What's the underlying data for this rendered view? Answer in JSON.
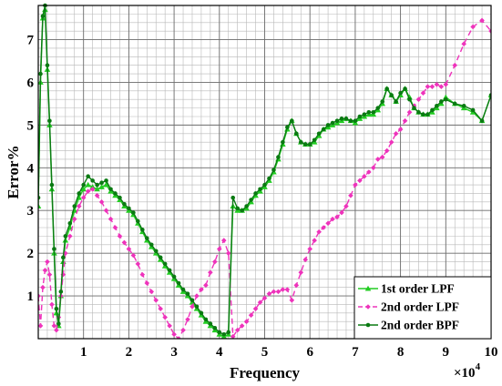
{
  "chart_data": {
    "type": "line",
    "title": "",
    "xlabel": "Frequency",
    "ylabel": "Error%",
    "x_multiplier_label": "×10",
    "x_multiplier_exp": "4",
    "xlim": [
      0,
      10
    ],
    "ylim": [
      0,
      7.8
    ],
    "xticks": [
      1,
      2,
      3,
      4,
      5,
      6,
      7,
      8,
      9,
      10
    ],
    "yticks": [
      1,
      2,
      3,
      4,
      5,
      6,
      7
    ],
    "grid": true,
    "legend_position": "bottom-right",
    "series": [
      {
        "name": "1st order LPF",
        "color": "#22cc22",
        "dash": "solid",
        "marker": "triangle",
        "x": [
          0.0,
          0.05,
          0.1,
          0.15,
          0.2,
          0.25,
          0.3,
          0.35,
          0.4,
          0.45,
          0.5,
          0.55,
          0.6,
          0.7,
          0.8,
          0.9,
          1.0,
          1.1,
          1.2,
          1.3,
          1.4,
          1.5,
          1.6,
          1.7,
          1.8,
          1.9,
          2.0,
          2.1,
          2.2,
          2.3,
          2.4,
          2.5,
          2.6,
          2.7,
          2.8,
          2.9,
          3.0,
          3.1,
          3.2,
          3.3,
          3.4,
          3.5,
          3.6,
          3.7,
          3.8,
          3.9,
          4.0,
          4.1,
          4.2,
          4.3,
          4.4,
          4.5,
          4.6,
          4.7,
          4.8,
          4.9,
          5.0,
          5.1,
          5.2,
          5.3,
          5.4,
          5.5,
          5.6,
          5.7,
          5.8,
          5.9,
          6.0,
          6.1,
          6.2,
          6.3,
          6.4,
          6.5,
          6.6,
          6.7,
          6.8,
          6.9,
          7.0,
          7.1,
          7.2,
          7.3,
          7.4,
          7.5,
          7.6,
          7.7,
          7.8,
          7.9,
          8.0,
          8.1,
          8.2,
          8.3,
          8.4,
          8.5,
          8.6,
          8.7,
          8.8,
          8.9,
          9.0,
          9.2,
          9.4,
          9.6,
          9.8,
          10.0
        ],
        "values": [
          3.1,
          6.0,
          7.5,
          7.7,
          6.3,
          5.0,
          3.5,
          2.0,
          0.6,
          0.3,
          1.0,
          1.8,
          2.3,
          2.6,
          3.0,
          3.3,
          3.5,
          3.6,
          3.55,
          3.5,
          3.55,
          3.6,
          3.45,
          3.35,
          3.25,
          3.1,
          3.0,
          2.9,
          2.7,
          2.5,
          2.3,
          2.15,
          2.0,
          1.85,
          1.7,
          1.55,
          1.4,
          1.25,
          1.1,
          1.0,
          0.85,
          0.7,
          0.55,
          0.4,
          0.3,
          0.2,
          0.1,
          0.05,
          0.1,
          3.1,
          3.0,
          3.0,
          3.05,
          3.2,
          3.35,
          3.45,
          3.55,
          3.7,
          3.9,
          4.2,
          4.55,
          4.9,
          5.1,
          4.8,
          4.6,
          4.55,
          4.55,
          4.6,
          4.75,
          4.9,
          4.95,
          5.0,
          5.05,
          5.1,
          5.15,
          5.1,
          5.05,
          5.15,
          5.2,
          5.25,
          5.25,
          5.35,
          5.5,
          5.85,
          5.7,
          5.55,
          5.7,
          5.85,
          5.65,
          5.4,
          5.3,
          5.25,
          5.25,
          5.3,
          5.4,
          5.5,
          5.65,
          5.5,
          5.4,
          5.3,
          5.1,
          5.7
        ]
      },
      {
        "name": "2nd order LPF",
        "color": "#ee33bb",
        "dash": "dashed",
        "marker": "diamond",
        "x": [
          0.0,
          0.05,
          0.1,
          0.15,
          0.2,
          0.25,
          0.3,
          0.35,
          0.4,
          0.45,
          0.5,
          0.55,
          0.6,
          0.7,
          0.8,
          0.9,
          1.0,
          1.1,
          1.2,
          1.3,
          1.4,
          1.5,
          1.6,
          1.7,
          1.8,
          1.9,
          2.0,
          2.1,
          2.2,
          2.3,
          2.4,
          2.5,
          2.6,
          2.7,
          2.8,
          2.9,
          3.0,
          3.1,
          3.2,
          3.3,
          3.4,
          3.5,
          3.6,
          3.7,
          3.8,
          3.9,
          4.0,
          4.1,
          4.2,
          4.3,
          4.4,
          4.5,
          4.6,
          4.7,
          4.8,
          4.9,
          5.0,
          5.1,
          5.2,
          5.3,
          5.4,
          5.5,
          5.6,
          5.7,
          5.8,
          5.9,
          6.0,
          6.1,
          6.2,
          6.3,
          6.4,
          6.5,
          6.6,
          6.7,
          6.8,
          6.9,
          7.0,
          7.1,
          7.2,
          7.3,
          7.4,
          7.5,
          7.6,
          7.7,
          7.8,
          7.9,
          8.0,
          8.1,
          8.2,
          8.3,
          8.4,
          8.5,
          8.6,
          8.7,
          8.8,
          8.9,
          9.0,
          9.2,
          9.4,
          9.6,
          9.8,
          10.0
        ],
        "values": [
          1.0,
          0.3,
          1.2,
          1.6,
          1.8,
          1.5,
          0.8,
          0.3,
          0.2,
          0.5,
          1.0,
          1.5,
          2.0,
          2.4,
          2.8,
          3.1,
          3.3,
          3.45,
          3.5,
          3.35,
          3.2,
          3.0,
          2.8,
          2.6,
          2.4,
          2.25,
          2.1,
          1.95,
          1.75,
          1.5,
          1.3,
          1.1,
          0.9,
          0.7,
          0.5,
          0.3,
          0.1,
          0.0,
          0.2,
          0.45,
          0.75,
          1.0,
          1.15,
          1.25,
          1.55,
          1.8,
          2.1,
          2.3,
          2.0,
          0.05,
          0.2,
          0.3,
          0.4,
          0.55,
          0.7,
          0.85,
          0.95,
          1.05,
          1.1,
          1.1,
          1.15,
          1.15,
          0.9,
          1.25,
          1.55,
          1.85,
          2.1,
          2.3,
          2.5,
          2.6,
          2.7,
          2.8,
          2.85,
          2.95,
          3.1,
          3.35,
          3.6,
          3.7,
          3.8,
          3.9,
          4.0,
          4.2,
          4.25,
          4.4,
          4.6,
          4.8,
          4.9,
          5.1,
          5.3,
          5.45,
          5.6,
          5.75,
          5.9,
          5.9,
          5.95,
          5.9,
          5.95,
          6.4,
          6.9,
          7.3,
          7.45,
          7.2
        ]
      },
      {
        "name": "2nd order BPF",
        "color": "#0a7a12",
        "dash": "solid",
        "marker": "star",
        "x": [
          0.0,
          0.05,
          0.1,
          0.15,
          0.2,
          0.25,
          0.3,
          0.35,
          0.4,
          0.45,
          0.5,
          0.55,
          0.6,
          0.7,
          0.8,
          0.9,
          1.0,
          1.1,
          1.2,
          1.3,
          1.4,
          1.5,
          1.6,
          1.7,
          1.8,
          1.9,
          2.0,
          2.1,
          2.2,
          2.3,
          2.4,
          2.5,
          2.6,
          2.7,
          2.8,
          2.9,
          3.0,
          3.1,
          3.2,
          3.3,
          3.4,
          3.5,
          3.6,
          3.7,
          3.8,
          3.9,
          4.0,
          4.1,
          4.2,
          4.3,
          4.4,
          4.5,
          4.6,
          4.7,
          4.8,
          4.9,
          5.0,
          5.1,
          5.2,
          5.3,
          5.4,
          5.5,
          5.6,
          5.7,
          5.8,
          5.9,
          6.0,
          6.1,
          6.2,
          6.3,
          6.4,
          6.5,
          6.6,
          6.7,
          6.8,
          6.9,
          7.0,
          7.1,
          7.2,
          7.3,
          7.4,
          7.5,
          7.6,
          7.7,
          7.8,
          7.9,
          8.0,
          8.1,
          8.2,
          8.3,
          8.4,
          8.5,
          8.6,
          8.7,
          8.8,
          8.9,
          9.0,
          9.2,
          9.4,
          9.6,
          9.8,
          10.0
        ],
        "values": [
          3.3,
          6.2,
          7.55,
          7.8,
          6.4,
          5.1,
          3.6,
          2.1,
          0.7,
          0.35,
          1.1,
          1.9,
          2.4,
          2.7,
          3.1,
          3.4,
          3.6,
          3.8,
          3.7,
          3.6,
          3.65,
          3.7,
          3.5,
          3.4,
          3.3,
          3.15,
          3.05,
          2.95,
          2.75,
          2.55,
          2.35,
          2.2,
          2.05,
          1.9,
          1.75,
          1.6,
          1.45,
          1.3,
          1.15,
          1.05,
          0.9,
          0.75,
          0.6,
          0.45,
          0.35,
          0.25,
          0.15,
          0.1,
          0.15,
          3.3,
          3.05,
          3.0,
          3.1,
          3.25,
          3.4,
          3.5,
          3.6,
          3.75,
          3.95,
          4.25,
          4.6,
          4.95,
          5.1,
          4.8,
          4.6,
          4.55,
          4.55,
          4.65,
          4.8,
          4.9,
          5.0,
          5.05,
          5.1,
          5.15,
          5.15,
          5.1,
          5.1,
          5.2,
          5.25,
          5.3,
          5.3,
          5.4,
          5.55,
          5.85,
          5.7,
          5.55,
          5.75,
          5.85,
          5.6,
          5.4,
          5.3,
          5.25,
          5.25,
          5.35,
          5.45,
          5.55,
          5.6,
          5.5,
          5.45,
          5.35,
          5.1,
          5.7
        ]
      }
    ]
  }
}
